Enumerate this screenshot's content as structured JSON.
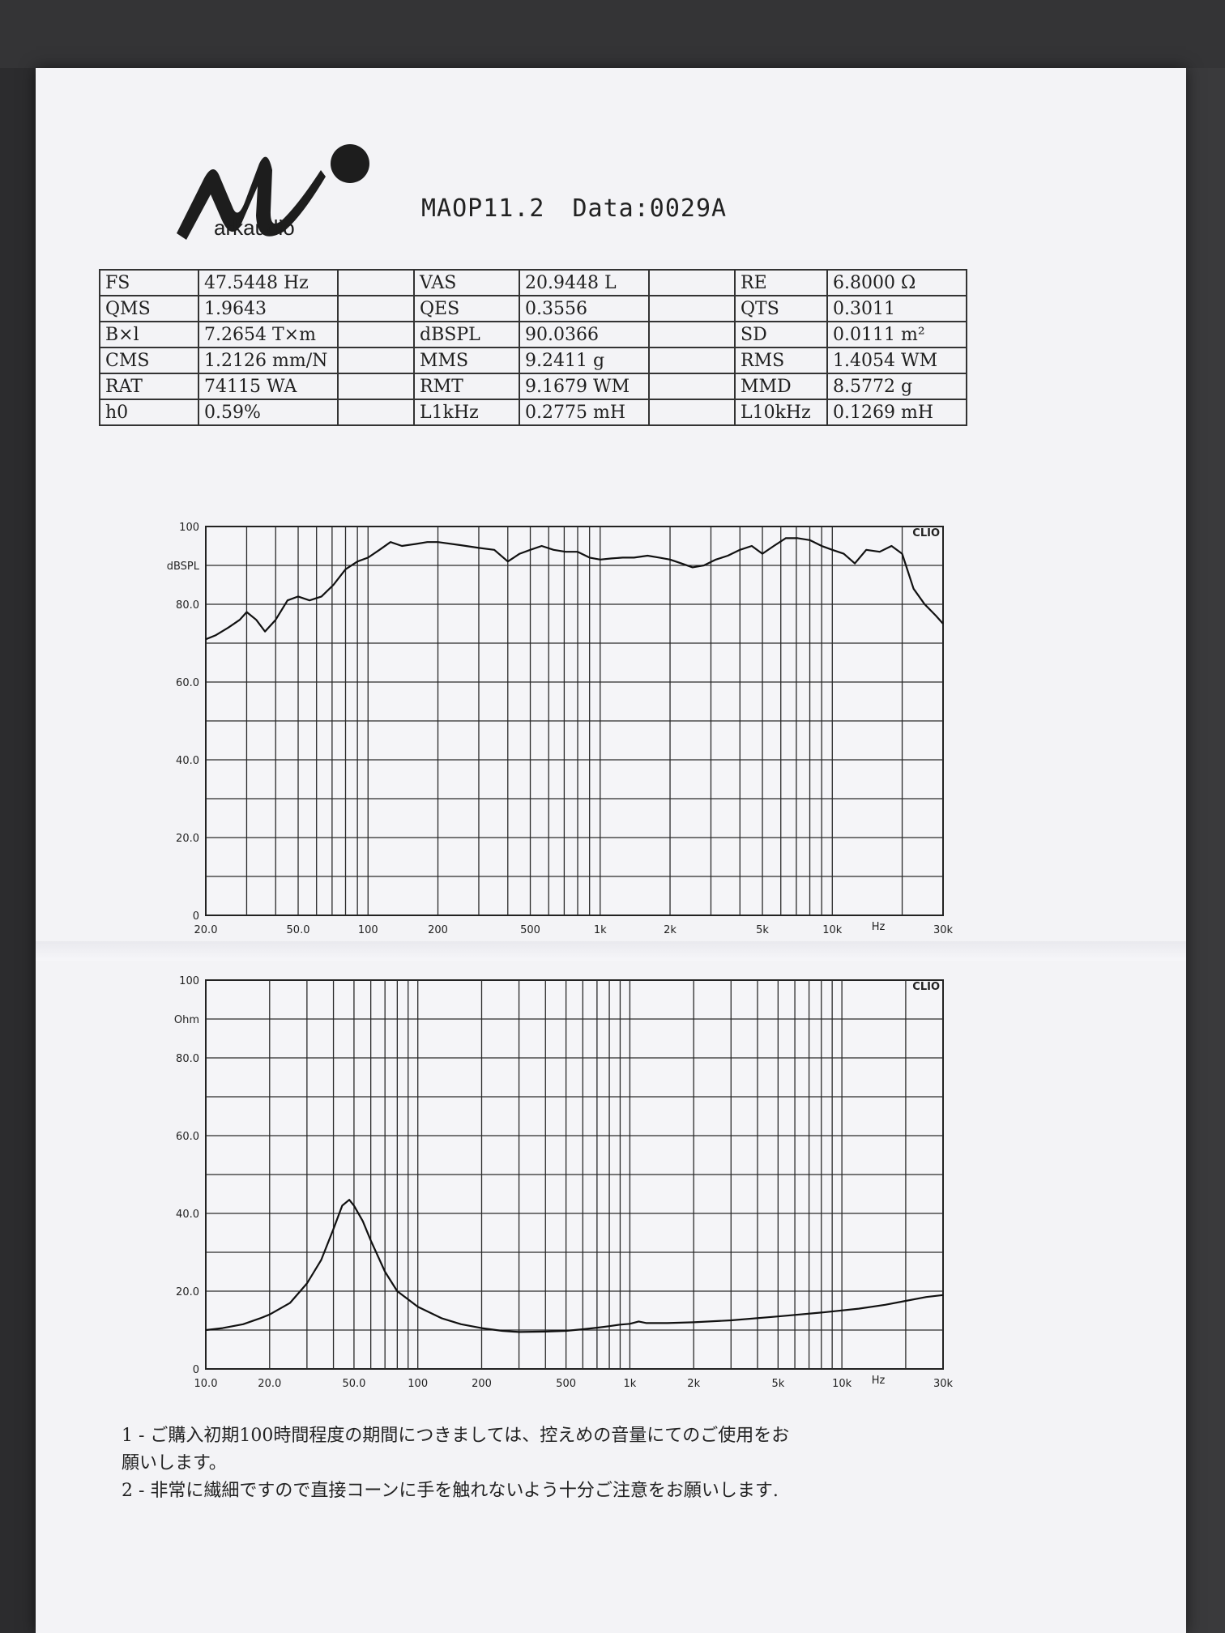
{
  "document": {
    "logo_text": "arkaudio",
    "model": "MAOP11.2",
    "data_id": "Data:0029A"
  },
  "params": {
    "rows": [
      [
        {
          "label": "FS",
          "value": "47.5448 Hz"
        },
        {
          "label": "VAS",
          "value": "20.9448 L"
        },
        {
          "label": "RE",
          "value": "6.8000 Ω"
        }
      ],
      [
        {
          "label": "QMS",
          "value": "1.9643"
        },
        {
          "label": "QES",
          "value": "0.3556"
        },
        {
          "label": "QTS",
          "value": "0.3011"
        }
      ],
      [
        {
          "label": "B×l",
          "value": "7.2654 T×m"
        },
        {
          "label": "dBSPL",
          "value": "90.0366"
        },
        {
          "label": "SD",
          "value": "0.0111 m²"
        }
      ],
      [
        {
          "label": "CMS",
          "value": "1.2126 mm/N"
        },
        {
          "label": "MMS",
          "value": "9.2411 g"
        },
        {
          "label": "RMS",
          "value": "1.4054 WM"
        }
      ],
      [
        {
          "label": "RAT",
          "value": "74115 WA"
        },
        {
          "label": "RMT",
          "value": "9.1679 WM"
        },
        {
          "label": "MMD",
          "value": "8.5772 g"
        }
      ],
      [
        {
          "label": "h0",
          "value": "0.59%"
        },
        {
          "label": "L1kHz",
          "value": "0.2775 mH"
        },
        {
          "label": "L10kHz",
          "value": "0.1269 mH"
        }
      ]
    ]
  },
  "chart_data": [
    {
      "type": "line",
      "brand": "CLIO",
      "ylabel": "dBSPL",
      "xlabel": "Hz",
      "x_scale": "log",
      "xlim": [
        20,
        30000
      ],
      "ylim": [
        0,
        100
      ],
      "yticks": [
        {
          "v": 100,
          "t": "100"
        },
        {
          "v": 80,
          "t": "80.0"
        },
        {
          "v": 60,
          "t": "60.0"
        },
        {
          "v": 40,
          "t": "40.0"
        },
        {
          "v": 20,
          "t": "20.0"
        },
        {
          "v": 0,
          "t": "0"
        }
      ],
      "xticks": [
        {
          "v": 20,
          "t": "20.0"
        },
        {
          "v": 50,
          "t": "50.0"
        },
        {
          "v": 100,
          "t": "100"
        },
        {
          "v": 200,
          "t": "200"
        },
        {
          "v": 500,
          "t": "500"
        },
        {
          "v": 1000,
          "t": "1k"
        },
        {
          "v": 2000,
          "t": "2k"
        },
        {
          "v": 5000,
          "t": "5k"
        },
        {
          "v": 10000,
          "t": "10k"
        },
        {
          "v": 30000,
          "t": "30k"
        }
      ],
      "x": [
        20,
        22,
        25,
        28,
        30,
        33,
        36,
        40,
        45,
        50,
        56,
        63,
        71,
        80,
        90,
        100,
        112,
        125,
        140,
        160,
        180,
        200,
        250,
        300,
        350,
        400,
        450,
        500,
        560,
        630,
        710,
        800,
        900,
        1000,
        1120,
        1250,
        1400,
        1600,
        1800,
        2000,
        2240,
        2500,
        2800,
        3150,
        3550,
        4000,
        4500,
        5000,
        5600,
        6300,
        7100,
        8000,
        9000,
        10000,
        11200,
        12500,
        14000,
        16000,
        18000,
        20000,
        22400,
        25000,
        28000,
        30000
      ],
      "y": [
        71,
        72,
        74,
        76,
        78,
        76,
        73,
        76,
        81,
        82,
        81,
        82,
        85,
        89,
        91,
        92,
        94,
        96,
        95,
        95.5,
        96,
        96,
        95.2,
        94.5,
        94,
        91,
        93,
        94,
        95,
        94,
        93.5,
        93.5,
        92,
        91.5,
        91.8,
        92,
        92,
        92.5,
        92,
        91.5,
        90.5,
        89.5,
        90,
        91.5,
        92.5,
        94,
        95,
        93,
        95,
        97,
        97,
        96.5,
        95,
        94,
        93,
        90.5,
        94,
        93.5,
        95,
        93,
        84,
        80,
        77,
        75
      ]
    },
    {
      "type": "line",
      "brand": "CLIO",
      "ylabel": "Ohm",
      "xlabel": "Hz",
      "x_scale": "log",
      "xlim": [
        10,
        30000
      ],
      "ylim": [
        0,
        100
      ],
      "yticks": [
        {
          "v": 100,
          "t": "100"
        },
        {
          "v": 80,
          "t": "80.0"
        },
        {
          "v": 60,
          "t": "60.0"
        },
        {
          "v": 40,
          "t": "40.0"
        },
        {
          "v": 20,
          "t": "20.0"
        },
        {
          "v": 0,
          "t": "0"
        }
      ],
      "xticks": [
        {
          "v": 10,
          "t": "10.0"
        },
        {
          "v": 20,
          "t": "20.0"
        },
        {
          "v": 50,
          "t": "50.0"
        },
        {
          "v": 100,
          "t": "100"
        },
        {
          "v": 200,
          "t": "200"
        },
        {
          "v": 500,
          "t": "500"
        },
        {
          "v": 1000,
          "t": "1k"
        },
        {
          "v": 2000,
          "t": "2k"
        },
        {
          "v": 5000,
          "t": "5k"
        },
        {
          "v": 10000,
          "t": "10k"
        },
        {
          "v": 30000,
          "t": "30k"
        }
      ],
      "x": [
        10,
        12,
        15,
        18,
        20,
        25,
        30,
        35,
        40,
        44,
        47.5,
        50,
        55,
        60,
        70,
        80,
        100,
        130,
        160,
        200,
        250,
        300,
        400,
        500,
        600,
        700,
        800,
        900,
        1000,
        1100,
        1200,
        1500,
        2000,
        3000,
        5000,
        8000,
        12000,
        16000,
        20000,
        25000,
        30000
      ],
      "y": [
        10,
        10.5,
        11.5,
        13,
        14,
        17,
        22,
        28,
        36,
        42,
        43.5,
        42,
        38,
        33,
        25,
        20,
        16,
        13,
        11.5,
        10.5,
        9.8,
        9.5,
        9.6,
        9.8,
        10.2,
        10.6,
        11,
        11.4,
        11.6,
        12.2,
        11.8,
        11.8,
        12,
        12.5,
        13.5,
        14.5,
        15.5,
        16.5,
        17.5,
        18.5,
        19
      ]
    }
  ],
  "notes": {
    "line1": "1 - ご購入初期100時間程度の期間につきましては、控えめの音量にてのご使用をお",
    "line1b": "願いします。",
    "line2": "2 - 非常に繊細ですので直接コーンに手を触れないよう十分ご注意をお願いします."
  }
}
